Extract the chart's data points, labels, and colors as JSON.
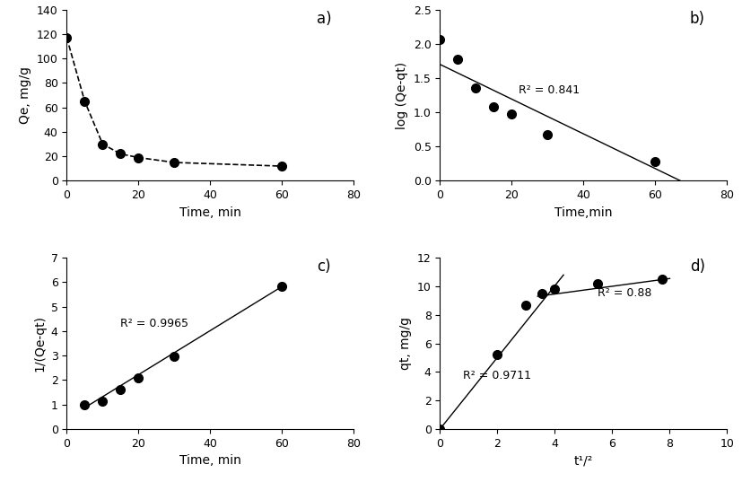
{
  "panel_a": {
    "time": [
      0,
      5,
      10,
      15,
      20,
      30,
      60
    ],
    "Qe": [
      117,
      65,
      30,
      22,
      19,
      15,
      12
    ],
    "xlabel": "Time, min",
    "ylabel": "Qe, mg/g",
    "xlim": [
      0,
      80
    ],
    "ylim": [
      0,
      140
    ],
    "xticks": [
      0,
      20,
      40,
      60,
      80
    ],
    "yticks": [
      0,
      20,
      40,
      60,
      80,
      100,
      120,
      140
    ],
    "label": "a)"
  },
  "panel_b": {
    "time": [
      0,
      5,
      10,
      15,
      20,
      30,
      60
    ],
    "log_Qe_qt": [
      2.07,
      1.77,
      1.35,
      1.08,
      0.97,
      0.67,
      0.28
    ],
    "fit_x": [
      0,
      67
    ],
    "fit_y": [
      1.7,
      0.0
    ],
    "xlabel": "Time,min",
    "ylabel": "log (Qe-qt)",
    "xlim": [
      0,
      80
    ],
    "ylim": [
      0,
      2.5
    ],
    "xticks": [
      0,
      20,
      40,
      60,
      80
    ],
    "yticks": [
      0,
      0.5,
      1.0,
      1.5,
      2.0,
      2.5
    ],
    "r2_text": "R² = 0.841",
    "r2_x": 22,
    "r2_y": 1.28,
    "label": "b)"
  },
  "panel_c": {
    "time": [
      5,
      10,
      15,
      20,
      30,
      60
    ],
    "inv_Qe_qt": [
      1.0,
      1.15,
      1.6,
      2.1,
      2.97,
      5.83
    ],
    "fit_x": [
      5,
      60
    ],
    "fit_y": [
      0.87,
      5.83
    ],
    "xlabel": "Time, min",
    "ylabel": "1/(Qe-qt)",
    "xlim": [
      0,
      80
    ],
    "ylim": [
      0,
      7
    ],
    "xticks": [
      0,
      20,
      40,
      60,
      80
    ],
    "yticks": [
      0,
      1,
      2,
      3,
      4,
      5,
      6,
      7
    ],
    "r2_text": "R² = 0.9965",
    "r2_x": 15,
    "r2_y": 4.2,
    "label": "c)"
  },
  "panel_d": {
    "t_half": [
      0,
      2.0,
      3.0,
      3.54,
      4.0,
      5.48,
      7.75
    ],
    "qt": [
      0,
      5.2,
      8.7,
      9.5,
      9.8,
      10.2,
      10.5
    ],
    "fit1_x": [
      0,
      4.3
    ],
    "fit1_y": [
      0,
      10.8
    ],
    "fit2_x": [
      3.4,
      8.0
    ],
    "fit2_y": [
      9.3,
      10.55
    ],
    "xlabel": "t¹/²",
    "ylabel": "qt, mg/g",
    "xlim": [
      0,
      10
    ],
    "ylim": [
      0,
      12
    ],
    "xticks": [
      0,
      2,
      4,
      6,
      8,
      10
    ],
    "yticks": [
      0,
      2,
      4,
      6,
      8,
      10,
      12
    ],
    "r2_text1": "R² = 0.9711",
    "r2_text2": "R² = 0.88",
    "r2_x1": 0.8,
    "r2_y1": 3.5,
    "r2_x2": 5.5,
    "r2_y2": 9.3,
    "label": "d)"
  }
}
